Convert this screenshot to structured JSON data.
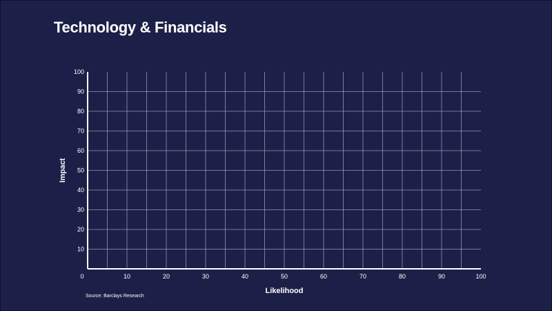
{
  "chart_data": {
    "type": "scatter",
    "title": "Technology & Financials",
    "xlabel": "Likelihood",
    "ylabel": "Impact",
    "xlim": [
      0,
      100
    ],
    "ylim": [
      0,
      100
    ],
    "x_ticks": [
      0,
      10,
      20,
      30,
      40,
      50,
      60,
      70,
      80,
      90,
      100
    ],
    "y_ticks": [
      10,
      20,
      30,
      40,
      50,
      60,
      70,
      80,
      90,
      100
    ],
    "x_gridlines_every": 5,
    "y_gridlines_every": 10,
    "grid": true,
    "series": [],
    "source": "Source: Barclays Research"
  },
  "colors": {
    "background": "#1c2048",
    "grid": "#b9bccd",
    "axis": "#ffffff",
    "text": "#ffffff"
  }
}
